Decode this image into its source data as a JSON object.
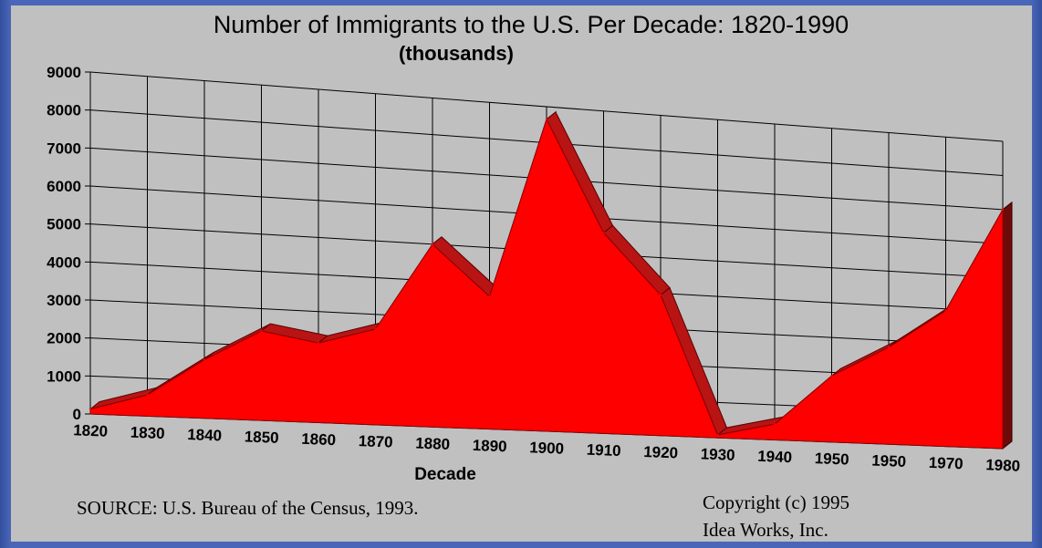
{
  "chart_data": {
    "type": "area",
    "title": "Number of Immigrants to the U.S. Per Decade: 1820-1990",
    "subtitle": "(thousands)",
    "xlabel": "Decade",
    "ylabel": "",
    "categories": [
      "1820",
      "1830",
      "1840",
      "1850",
      "1860",
      "1870",
      "1880",
      "1890",
      "1900",
      "1910",
      "1920",
      "1930",
      "1940",
      "1950",
      "1950",
      "1970",
      "1980"
    ],
    "values": [
      130,
      560,
      1560,
      2400,
      2150,
      2600,
      5000,
      3650,
      8650,
      5600,
      3950,
      80,
      450,
      1900,
      2800,
      3950,
      7000
    ],
    "y_ticks": [
      "0",
      "1000",
      "2000",
      "3000",
      "4000",
      "5000",
      "6000",
      "7000",
      "8000",
      "9000"
    ],
    "ylim": [
      0,
      9000
    ],
    "grid": true,
    "three_d": true,
    "legend": "none",
    "source_note": "SOURCE: U.S. Bureau of the Census, 1993.",
    "copyright_line1": "Copyright (c) 1995",
    "copyright_line2": "Idea Works, Inc.",
    "colors": {
      "area_fill": "#ff0000",
      "area_side": "#b81414",
      "area_dark": "#6e0a0a",
      "gridline": "#000000",
      "panel_bg": "#c0c0c0",
      "frame_bg": "#4a66b8"
    }
  }
}
